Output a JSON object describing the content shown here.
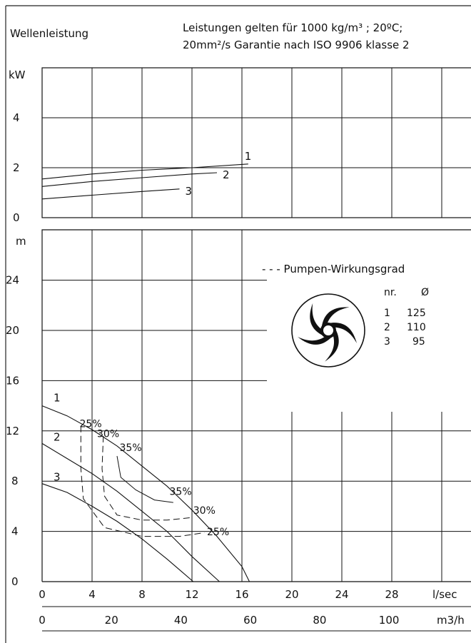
{
  "header": {
    "title": "Wellenleistung",
    "note_line1": "Leistungen gelten für 1000 kg/m³ ; 20ºC;",
    "note_line2": "20mm²/s Garantie nach ISO 9906 klasse 2"
  },
  "legend": {
    "efficiency_label": "- - - Pumpen-Wirkungsgrad",
    "col_nr": "nr.",
    "col_diameter": "Ø",
    "rows": [
      {
        "nr": "1",
        "diameter": "125"
      },
      {
        "nr": "2",
        "diameter": "110"
      },
      {
        "nr": "3",
        "diameter": "95"
      }
    ],
    "impeller_icon": "impeller-icon"
  },
  "chart_data": [
    {
      "type": "line",
      "title": "Wellenleistung",
      "ylabel": "kW",
      "ylim": [
        0,
        6
      ],
      "yticks": [
        "0",
        "2",
        "4"
      ],
      "xlim": [
        0,
        36
      ],
      "grid": true,
      "series": [
        {
          "name": "1",
          "x": [
            0,
            4,
            8,
            12,
            16.5
          ],
          "y": [
            1.55,
            1.75,
            1.9,
            2.0,
            2.15
          ]
        },
        {
          "name": "2",
          "x": [
            0,
            4,
            8,
            12,
            14
          ],
          "y": [
            1.25,
            1.45,
            1.6,
            1.75,
            1.8
          ]
        },
        {
          "name": "3",
          "x": [
            0,
            4,
            8,
            11
          ],
          "y": [
            0.75,
            0.9,
            1.05,
            1.15
          ]
        }
      ]
    },
    {
      "type": "line",
      "ylabel": "m",
      "ylim": [
        0,
        28
      ],
      "yticks": [
        "0",
        "4",
        "8",
        "12",
        "16",
        "20",
        "24"
      ],
      "xlabel": "l/sec",
      "xticks": [
        "0",
        "4",
        "8",
        "12",
        "16",
        "20",
        "24",
        "28"
      ],
      "xlim": [
        0,
        36
      ],
      "x2label": "m3/h",
      "x2ticks": [
        "0",
        "20",
        "40",
        "60",
        "80",
        "100"
      ],
      "grid": true,
      "series": [
        {
          "name": "1",
          "x": [
            0,
            2,
            4,
            6,
            8,
            10,
            12,
            14,
            16,
            16.6
          ],
          "y": [
            14,
            13.2,
            12.1,
            10.8,
            9.2,
            7.6,
            5.7,
            3.6,
            1.2,
            0
          ]
        },
        {
          "name": "2",
          "x": [
            0,
            2,
            4,
            6,
            8,
            10,
            12,
            14.2
          ],
          "y": [
            11,
            9.8,
            8.6,
            7.2,
            5.6,
            4,
            2,
            0
          ]
        },
        {
          "name": "3",
          "x": [
            0,
            2,
            4,
            6,
            8,
            10,
            12.1
          ],
          "y": [
            7.8,
            7.1,
            6,
            4.8,
            3.4,
            1.8,
            0
          ]
        }
      ],
      "efficiency_curves": [
        {
          "label": "25%",
          "x": [
            3.1,
            3.1,
            3.3,
            5,
            8,
            11,
            13
          ],
          "y": [
            12.4,
            9,
            6.6,
            4.3,
            3.6,
            3.6,
            3.9
          ]
        },
        {
          "label": "30%",
          "x": [
            4.9,
            4.8,
            5,
            6,
            8,
            10,
            12
          ],
          "y": [
            11.6,
            9,
            6.8,
            5.3,
            4.9,
            4.9,
            5.1
          ]
        },
        {
          "label": "35%",
          "x": [
            6,
            6.3,
            7.5,
            9,
            10.5
          ],
          "y": [
            10,
            8.3,
            7.3,
            6.5,
            6.3
          ]
        }
      ],
      "efficiency_labels": [
        {
          "text": "25%",
          "x": 3.0,
          "y": 12.3
        },
        {
          "text": "30%",
          "x": 4.4,
          "y": 11.5
        },
        {
          "text": "35%",
          "x": 6.2,
          "y": 10.4
        },
        {
          "text": "35%",
          "x": 10.2,
          "y": 6.9
        },
        {
          "text": "30%",
          "x": 12.1,
          "y": 5.4
        },
        {
          "text": "25%",
          "x": 13.2,
          "y": 3.7
        }
      ]
    }
  ]
}
